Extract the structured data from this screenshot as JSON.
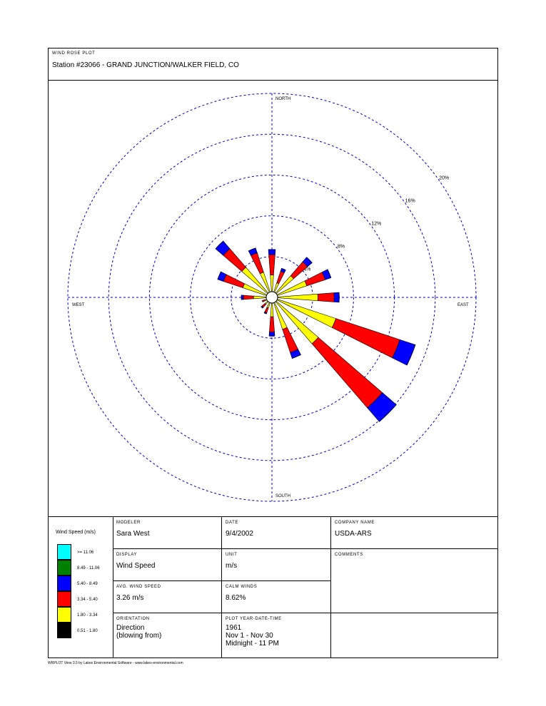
{
  "header": {
    "label": "WIND ROSE PLOT",
    "station": "Station #23066 - GRAND JUNCTION/WALKER FIELD, CO"
  },
  "chart_data": {
    "type": "windrose",
    "categories": [
      null,
      null,
      null,
      null,
      null,
      null,
      null,
      null,
      null,
      null,
      null,
      null,
      null,
      null,
      null,
      null
    ],
    "compass_labels": [
      "NORTH",
      "EAST",
      "SOUTH",
      "WEST"
    ],
    "legend_title": "Wind Speed (m/s)",
    "rlim": [
      0,
      20
    ],
    "rticks": [
      {
        "value": 4,
        "label": "4%"
      },
      {
        "value": 8,
        "label": "8%"
      },
      {
        "value": 12,
        "label": "12%"
      },
      {
        "value": 16,
        "label": "16%"
      },
      {
        "value": 20,
        "label": "20%"
      }
    ],
    "series": [
      {
        "name": "0.51 - 1.80",
        "color": "#000000",
        "values": [
          0.3,
          0.3,
          0.3,
          0.3,
          0.3,
          0.4,
          0.4,
          0.3,
          0.3,
          0.3,
          0.3,
          0.3,
          0.3,
          0.3,
          0.3,
          0.3
        ]
      },
      {
        "name": "1.80 - 3.34",
        "color": "#ffff00",
        "values": [
          1.9,
          1.2,
          2.5,
          3.3,
          4.2,
          6.2,
          5.6,
          3.0,
          1.6,
          0.8,
          0.6,
          0.4,
          1.5,
          2.7,
          3.6,
          2.3
        ]
      },
      {
        "name": "3.34 - 5.40",
        "color": "#ff0000",
        "values": [
          2.0,
          1.2,
          1.8,
          1.9,
          1.6,
          6.6,
          8.3,
          2.4,
          1.5,
          0.5,
          0.4,
          0.3,
          1.0,
          2.0,
          2.4,
          2.0
        ]
      },
      {
        "name": "5.40 - 8.49",
        "color": "#0000ff",
        "values": [
          0.5,
          0.3,
          0.6,
          0.6,
          0.5,
          1.6,
          1.8,
          0.6,
          0.4,
          0.1,
          0.1,
          0.0,
          0.2,
          0.6,
          1.0,
          0.5
        ]
      },
      {
        "name": "8.49 - 11.06",
        "color": "#008000",
        "values": [
          0,
          0,
          0,
          0,
          0,
          0,
          0,
          0,
          0,
          0,
          0,
          0,
          0,
          0,
          0,
          0
        ]
      },
      {
        "name": ">= 11.06",
        "color": "#00ffff",
        "values": [
          0,
          0,
          0,
          0,
          0,
          0,
          0,
          0,
          0,
          0,
          0,
          0,
          0,
          0,
          0,
          0
        ]
      }
    ]
  },
  "info": {
    "modeler": {
      "label": "MODELER",
      "value": "Sara West"
    },
    "date": {
      "label": "DATE",
      "value": "9/4/2002"
    },
    "company": {
      "label": "COMPANY NAME",
      "value": "USDA-ARS"
    },
    "display": {
      "label": "DISPLAY",
      "value": "Wind Speed"
    },
    "unit": {
      "label": "UNIT",
      "value": "m/s"
    },
    "comments": {
      "label": "COMMENTS"
    },
    "avg_speed": {
      "label": "AVG. WIND SPEED",
      "value": "3.26 m/s"
    },
    "calm": {
      "label": "CALM WINDS",
      "value": "8.62%"
    },
    "orientation": {
      "label": "ORIENTATION",
      "lines": [
        "Direction",
        "(blowing from)"
      ]
    },
    "period": {
      "label": "PLOT YEAR-DATE-TIME",
      "lines": [
        "1961",
        "Nov 1 - Nov 30",
        "Midnight - 11 PM"
      ]
    }
  },
  "footer": "WRPLOT View 3.5 by Lakes Environmental Software - www.lakes-environmental.com"
}
